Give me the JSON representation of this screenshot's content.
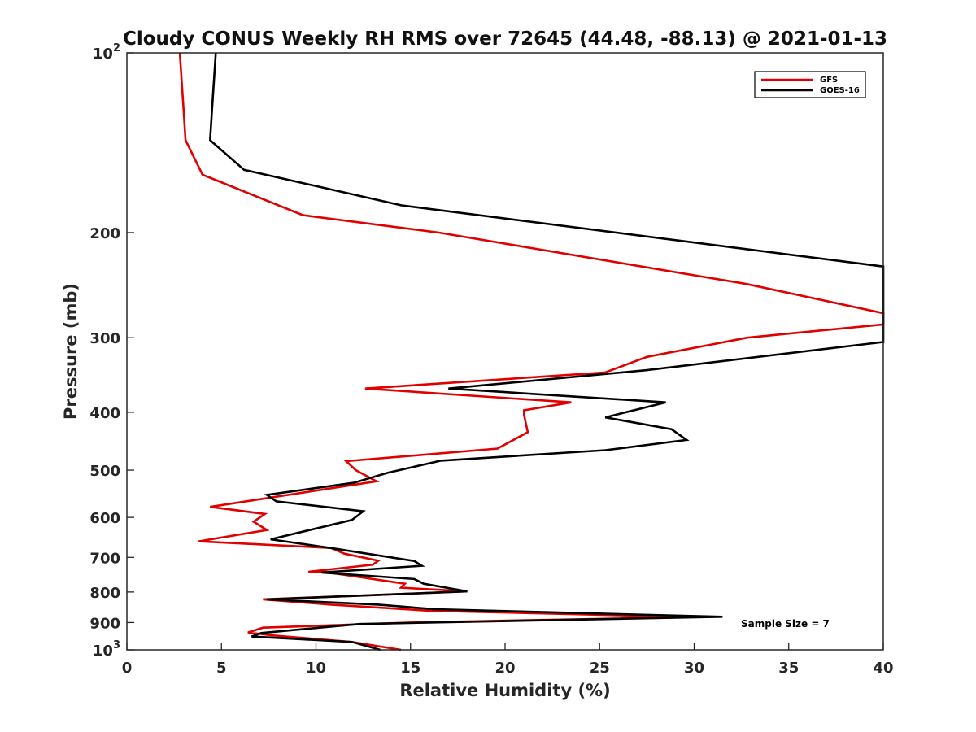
{
  "chart_data": {
    "type": "line",
    "title": "Cloudy CONUS Weekly RH RMS over 72645 (44.48, -88.13) @ 2021-01-13",
    "xlabel": "Relative Humidity (%)",
    "ylabel": "Pressure (mb)",
    "xlim": [
      0,
      40
    ],
    "ylim": [
      100,
      1000
    ],
    "y_scale": "log",
    "y_reversed": true,
    "x_ticks": [
      0,
      5,
      10,
      15,
      20,
      25,
      30,
      35,
      40
    ],
    "x_tick_labels": [
      "0",
      "5",
      "10",
      "15",
      "20",
      "25",
      "30",
      "35",
      "40"
    ],
    "y_ticks": [
      100,
      200,
      300,
      400,
      500,
      600,
      700,
      800,
      900,
      1000
    ],
    "y_tick_labels": [
      {
        "base": "10",
        "exp": "2"
      },
      {
        "base": "200",
        "exp": ""
      },
      {
        "base": "300",
        "exp": ""
      },
      {
        "base": "400",
        "exp": ""
      },
      {
        "base": "500",
        "exp": ""
      },
      {
        "base": "600",
        "exp": ""
      },
      {
        "base": "700",
        "exp": ""
      },
      {
        "base": "800",
        "exp": ""
      },
      {
        "base": "900",
        "exp": ""
      },
      {
        "base": "10",
        "exp": "3"
      }
    ],
    "grid": false,
    "legend_position": "top-right",
    "annotation": "Sample Size = 7",
    "series": [
      {
        "name": "GFS",
        "color": "#e00000",
        "points": [
          [
            2.8,
            100
          ],
          [
            3.0,
            125
          ],
          [
            3.1,
            140
          ],
          [
            4.0,
            160
          ],
          [
            9.3,
            187
          ],
          [
            16.5,
            200
          ],
          [
            32.8,
            244
          ],
          [
            40,
            273
          ],
          [
            40,
            285
          ],
          [
            32.8,
            300
          ],
          [
            27.5,
            323
          ],
          [
            25.3,
            343
          ],
          [
            12.6,
            365
          ],
          [
            23.5,
            385
          ],
          [
            21.0,
            397
          ],
          [
            21.0,
            404
          ],
          [
            21.2,
            432
          ],
          [
            19.6,
            460
          ],
          [
            11.6,
            483
          ],
          [
            12.1,
            500
          ],
          [
            13.2,
            522
          ],
          [
            4.4,
            576
          ],
          [
            7.3,
            592
          ],
          [
            6.7,
            610
          ],
          [
            7.4,
            630
          ],
          [
            3.8,
            658
          ],
          [
            10.8,
            675
          ],
          [
            11.5,
            690
          ],
          [
            13.3,
            709
          ],
          [
            13.0,
            720
          ],
          [
            9.6,
            740
          ],
          [
            10.5,
            741
          ],
          [
            14.7,
            775
          ],
          [
            14.5,
            787
          ],
          [
            18.0,
            798
          ],
          [
            7.2,
            823
          ],
          [
            10.8,
            840
          ],
          [
            16.0,
            860
          ],
          [
            30.0,
            881
          ],
          [
            15.0,
            900
          ],
          [
            7.2,
            918
          ],
          [
            6.4,
            935
          ],
          [
            7.6,
            945
          ],
          [
            11.9,
            970
          ],
          [
            14.5,
            1000
          ]
        ]
      },
      {
        "name": "GOES-16",
        "color": "#000000",
        "points": [
          [
            4.7,
            100
          ],
          [
            4.5,
            125
          ],
          [
            4.4,
            140
          ],
          [
            6.2,
            157
          ],
          [
            14.5,
            180
          ],
          [
            40,
            228
          ],
          [
            40,
            305
          ],
          [
            27.5,
            340
          ],
          [
            17.0,
            365
          ],
          [
            28.5,
            385
          ],
          [
            25.3,
            408
          ],
          [
            28.8,
            427
          ],
          [
            29.6,
            445
          ],
          [
            25.3,
            463
          ],
          [
            16.6,
            482
          ],
          [
            13.8,
            505
          ],
          [
            12.0,
            525
          ],
          [
            7.4,
            550
          ],
          [
            7.9,
            564
          ],
          [
            12.5,
            586
          ],
          [
            11.9,
            606
          ],
          [
            7.6,
            653
          ],
          [
            10.9,
            676
          ],
          [
            15.2,
            710
          ],
          [
            15.6,
            723
          ],
          [
            10.3,
            742
          ],
          [
            15.2,
            761
          ],
          [
            15.7,
            775
          ],
          [
            18.0,
            798
          ],
          [
            7.4,
            823
          ],
          [
            13.3,
            840
          ],
          [
            16.3,
            855
          ],
          [
            31.5,
            880
          ],
          [
            12.3,
            905
          ],
          [
            7.1,
            937
          ],
          [
            6.6,
            950
          ],
          [
            11.9,
            970
          ],
          [
            13.4,
            1000
          ]
        ]
      }
    ]
  }
}
